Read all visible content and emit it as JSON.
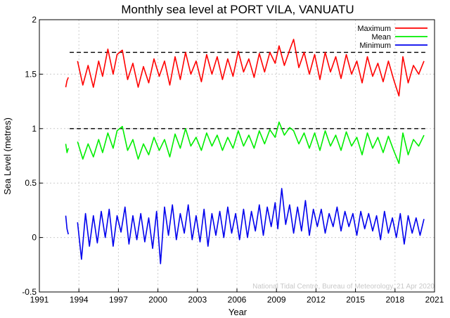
{
  "chart_data": {
    "type": "line",
    "title": "Monthly sea level at PORT VILA, VANUATU",
    "xlabel": "Year",
    "ylabel": "Sea Level (metres)",
    "xlim": [
      1991,
      2021
    ],
    "ylim": [
      -0.5,
      2
    ],
    "x_ticks": [
      "1991",
      "1994",
      "1997",
      "2000",
      "2003",
      "2006",
      "2009",
      "2012",
      "2015",
      "2018",
      "2021"
    ],
    "y_ticks": [
      "-0.5",
      "0",
      "0.5",
      "1",
      "1.5",
      "2"
    ],
    "grid": true,
    "legend_position": "top-right",
    "credit": "National Tidal Centre, Bureau of Meteorology, 21 Apr 2020",
    "reference_lines": [
      {
        "y": 1.7,
        "x_start": 1993.3,
        "x_end": 2020.3,
        "style": "dashed",
        "color": "#000000"
      },
      {
        "y": 1.0,
        "x_start": 1993.3,
        "x_end": 2020.3,
        "style": "dashed",
        "color": "#000000"
      }
    ],
    "series": [
      {
        "name": "Maximum",
        "color": "#ff0000",
        "segments": [
          {
            "x": [
              1993.0,
              1993.1,
              1993.2
            ],
            "y": [
              1.38,
              1.44,
              1.47
            ]
          },
          {
            "x": [
              1993.9,
              1994.3,
              1994.7,
              1995.1,
              1995.5,
              1995.8,
              1996.2,
              1996.6,
              1996.9,
              1997.3,
              1997.7,
              1998.1,
              1998.5,
              1998.9,
              1999.3,
              1999.7,
              2000.1,
              2000.5,
              2000.9,
              2001.3,
              2001.7,
              2002.1,
              2002.5,
              2002.9,
              2003.3,
              2003.7,
              2004.1,
              2004.5,
              2004.9,
              2005.3,
              2005.7,
              2006.1,
              2006.5,
              2006.9,
              2007.3,
              2007.7,
              2008.1,
              2008.5,
              2008.9,
              2009.2,
              2009.6,
              2010.0,
              2010.3,
              2010.7,
              2011.1,
              2011.5,
              2011.9,
              2012.3,
              2012.7,
              2013.1,
              2013.5,
              2013.9,
              2014.3,
              2014.7,
              2015.1,
              2015.5,
              2015.9,
              2016.3,
              2016.7,
              2017.1,
              2017.5,
              2017.9,
              2018.3,
              2018.6,
              2019.0,
              2019.4,
              2019.8,
              2020.2
            ],
            "y": [
              1.62,
              1.4,
              1.58,
              1.38,
              1.62,
              1.48,
              1.73,
              1.5,
              1.68,
              1.72,
              1.45,
              1.6,
              1.38,
              1.57,
              1.42,
              1.64,
              1.48,
              1.62,
              1.4,
              1.66,
              1.45,
              1.7,
              1.5,
              1.62,
              1.43,
              1.68,
              1.5,
              1.66,
              1.45,
              1.64,
              1.48,
              1.71,
              1.52,
              1.64,
              1.47,
              1.69,
              1.52,
              1.7,
              1.6,
              1.76,
              1.58,
              1.72,
              1.82,
              1.56,
              1.7,
              1.5,
              1.68,
              1.45,
              1.7,
              1.52,
              1.66,
              1.46,
              1.68,
              1.5,
              1.62,
              1.42,
              1.66,
              1.48,
              1.6,
              1.43,
              1.62,
              1.45,
              1.3,
              1.66,
              1.42,
              1.58,
              1.5,
              1.62
            ]
          }
        ]
      },
      {
        "name": "Mean",
        "color": "#00ee00",
        "segments": [
          {
            "x": [
              1993.0,
              1993.1,
              1993.2
            ],
            "y": [
              0.86,
              0.78,
              0.82
            ]
          },
          {
            "x": [
              1993.9,
              1994.3,
              1994.7,
              1995.1,
              1995.5,
              1995.8,
              1996.2,
              1996.6,
              1996.9,
              1997.3,
              1997.7,
              1998.1,
              1998.5,
              1998.9,
              1999.3,
              1999.7,
              2000.1,
              2000.5,
              2000.9,
              2001.3,
              2001.7,
              2002.1,
              2002.5,
              2002.9,
              2003.3,
              2003.7,
              2004.1,
              2004.5,
              2004.9,
              2005.3,
              2005.7,
              2006.1,
              2006.5,
              2006.9,
              2007.3,
              2007.7,
              2008.1,
              2008.5,
              2008.9,
              2009.2,
              2009.6,
              2010.0,
              2010.3,
              2010.7,
              2011.1,
              2011.5,
              2011.9,
              2012.3,
              2012.7,
              2013.1,
              2013.5,
              2013.9,
              2014.3,
              2014.7,
              2015.1,
              2015.5,
              2015.9,
              2016.3,
              2016.7,
              2017.1,
              2017.5,
              2017.9,
              2018.3,
              2018.6,
              2019.0,
              2019.4,
              2019.8,
              2020.2
            ],
            "y": [
              0.88,
              0.72,
              0.86,
              0.74,
              0.9,
              0.78,
              0.96,
              0.82,
              0.98,
              1.02,
              0.8,
              0.9,
              0.72,
              0.86,
              0.76,
              0.92,
              0.8,
              0.9,
              0.74,
              0.95,
              0.82,
              1.0,
              0.84,
              0.92,
              0.8,
              0.96,
              0.84,
              0.94,
              0.8,
              0.92,
              0.82,
              0.98,
              0.84,
              0.94,
              0.82,
              0.98,
              0.86,
              0.99,
              0.92,
              1.06,
              0.94,
              1.01,
              0.98,
              0.86,
              0.96,
              0.82,
              0.96,
              0.8,
              0.98,
              0.84,
              0.94,
              0.8,
              0.97,
              0.84,
              0.92,
              0.76,
              0.96,
              0.82,
              0.92,
              0.78,
              0.93,
              0.8,
              0.68,
              0.96,
              0.76,
              0.9,
              0.84,
              0.94
            ]
          }
        ]
      },
      {
        "name": "Minimum",
        "color": "#0000ee",
        "segments": [
          {
            "x": [
              1993.0,
              1993.1,
              1993.2
            ],
            "y": [
              0.2,
              0.08,
              0.03
            ]
          },
          {
            "x": [
              1993.9,
              1994.2,
              1994.5,
              1994.8,
              1995.1,
              1995.4,
              1995.7,
              1996.0,
              1996.3,
              1996.6,
              1996.9,
              1997.2,
              1997.5,
              1997.8,
              1998.1,
              1998.4,
              1998.7,
              1999.0,
              1999.3,
              1999.6,
              1999.9,
              2000.2,
              2000.5,
              2000.8,
              2001.1,
              2001.4,
              2001.7,
              2002.0,
              2002.3,
              2002.6,
              2002.9,
              2003.2,
              2003.5,
              2003.8,
              2004.1,
              2004.4,
              2004.7,
              2005.0,
              2005.3,
              2005.6,
              2005.9,
              2006.2,
              2006.5,
              2006.8,
              2007.1,
              2007.4,
              2007.7,
              2008.0,
              2008.3,
              2008.6,
              2008.9,
              2009.1,
              2009.4,
              2009.7,
              2010.0,
              2010.3,
              2010.6,
              2010.9,
              2011.2,
              2011.5,
              2011.8,
              2012.1,
              2012.4,
              2012.7,
              2013.0,
              2013.3,
              2013.6,
              2013.9,
              2014.2,
              2014.5,
              2014.8,
              2015.1,
              2015.4,
              2015.7,
              2016.0,
              2016.3,
              2016.6,
              2016.9,
              2017.2,
              2017.5,
              2017.8,
              2018.1,
              2018.4,
              2018.7,
              2019.0,
              2019.3,
              2019.6,
              2019.9,
              2020.2
            ],
            "y": [
              0.14,
              -0.2,
              0.22,
              -0.08,
              0.2,
              -0.05,
              0.24,
              0.0,
              0.26,
              -0.08,
              0.2,
              0.05,
              0.28,
              -0.06,
              0.2,
              -0.02,
              0.22,
              -0.04,
              0.18,
              -0.1,
              0.24,
              -0.24,
              0.28,
              0.02,
              0.3,
              -0.02,
              0.22,
              0.04,
              0.3,
              -0.02,
              0.2,
              -0.04,
              0.26,
              -0.08,
              0.22,
              0.02,
              0.24,
              0.0,
              0.28,
              0.04,
              0.22,
              -0.02,
              0.26,
              0.0,
              0.24,
              0.06,
              0.3,
              0.02,
              0.28,
              0.1,
              0.32,
              0.08,
              0.45,
              0.12,
              0.3,
              0.04,
              0.28,
              0.06,
              0.34,
              0.02,
              0.26,
              0.1,
              0.26,
              0.04,
              0.22,
              0.1,
              0.28,
              0.06,
              0.24,
              0.1,
              0.22,
              0.02,
              0.24,
              0.08,
              0.22,
              0.06,
              0.2,
              -0.02,
              0.24,
              0.04,
              0.18,
              0.0,
              0.22,
              -0.06,
              0.2,
              0.04,
              0.18,
              0.02,
              0.17
            ]
          }
        ]
      }
    ]
  }
}
